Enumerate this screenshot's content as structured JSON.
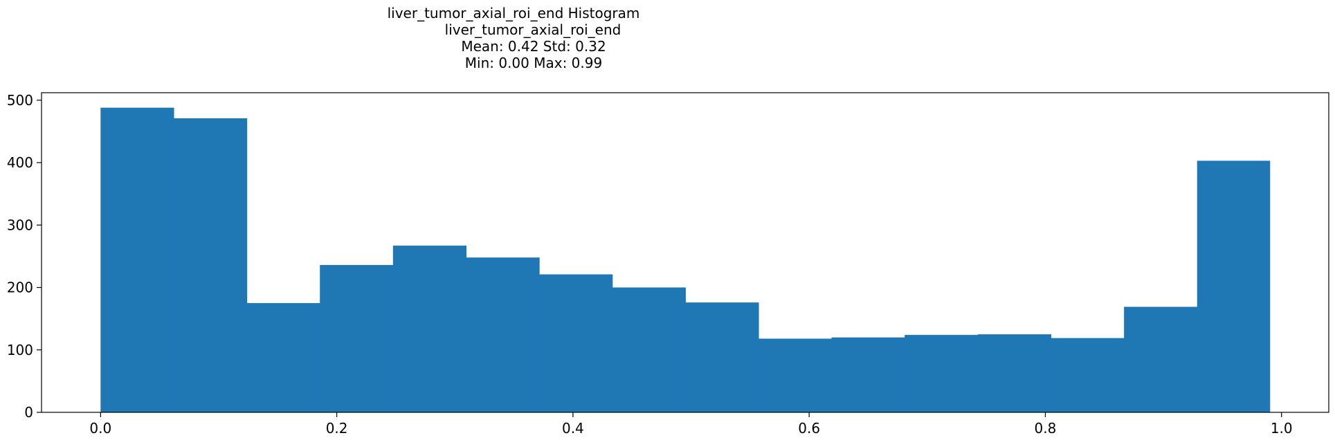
{
  "chart_data": {
    "type": "bar",
    "title_lines": [
      "liver_tumor_axial_roi_end Histogram",
      "liver_tumor_axial_roi_end",
      "Mean: 0.42 Std: 0.32",
      "Min: 0.00 Max: 0.99"
    ],
    "xlabel": "",
    "ylabel": "",
    "xlim": [
      -0.05,
      1.04
    ],
    "ylim": [
      0,
      512
    ],
    "x_ticks": [
      0.0,
      0.2,
      0.4,
      0.6,
      0.8,
      1.0
    ],
    "x_tick_labels": [
      "0.0",
      "0.2",
      "0.4",
      "0.6",
      "0.8",
      "1.0"
    ],
    "y_ticks": [
      0,
      100,
      200,
      300,
      400,
      500
    ],
    "y_tick_labels": [
      "0",
      "100",
      "200",
      "300",
      "400",
      "500"
    ],
    "bin_edges": [
      0.0,
      0.0619,
      0.1238,
      0.1857,
      0.2476,
      0.3095,
      0.3714,
      0.4333,
      0.4952,
      0.5571,
      0.619,
      0.6809,
      0.7428,
      0.8047,
      0.8666,
      0.9285,
      0.99
    ],
    "values": [
      488,
      471,
      175,
      236,
      267,
      248,
      221,
      200,
      176,
      118,
      120,
      124,
      125,
      119,
      169,
      403
    ],
    "bar_color": "#1f77b4",
    "grid": false
  }
}
